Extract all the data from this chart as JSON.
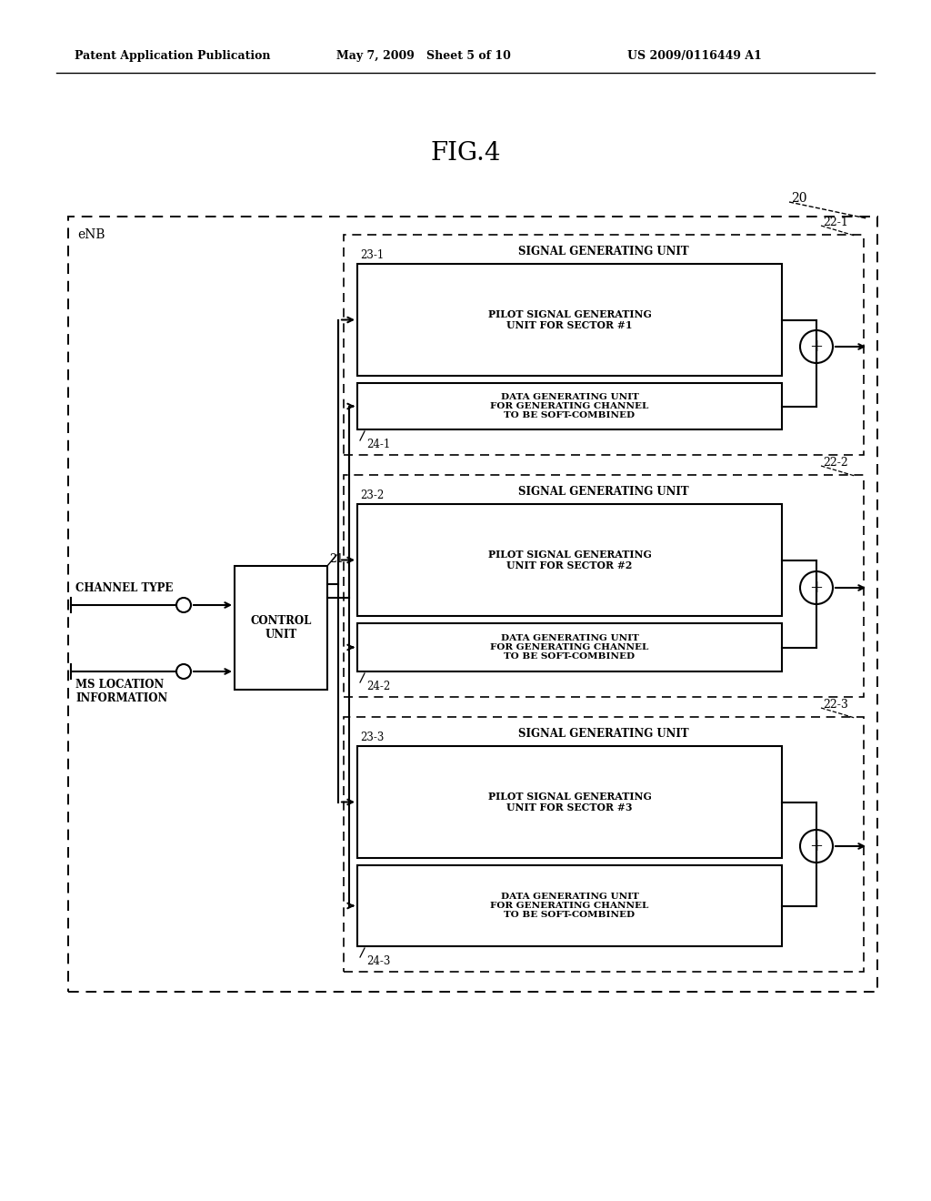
{
  "bg_color": "#ffffff",
  "title": "FIG.4",
  "header_left": "Patent Application Publication",
  "header_mid": "May 7, 2009   Sheet 5 of 10",
  "header_right": "US 2009/0116449 A1",
  "enb_label": "eNB",
  "outer_box_label": "20",
  "control_unit_label": "CONTROL\nUNIT",
  "control_unit_id": "21",
  "channel_type_label": "CHANNEL TYPE",
  "ms_location_label": "MS LOCATION\nINFORMATION",
  "sectors": [
    {
      "unit_id": "22-1",
      "unit_label": "SIGNAL GENERATING UNIT",
      "pilot_id": "23-1",
      "pilot_label": "PILOT SIGNAL GENERATING\nUNIT FOR SECTOR #1",
      "data_id": "24-1",
      "data_label": "DATA GENERATING UNIT\nFOR GENERATING CHANNEL\nTO BE SOFT-COMBINED"
    },
    {
      "unit_id": "22-2",
      "unit_label": "SIGNAL GENERATING UNIT",
      "pilot_id": "23-2",
      "pilot_label": "PILOT SIGNAL GENERATING\nUNIT FOR SECTOR #2",
      "data_id": "24-2",
      "data_label": "DATA GENERATING UNIT\nFOR GENERATING CHANNEL\nTO BE SOFT-COMBINED"
    },
    {
      "unit_id": "22-3",
      "unit_label": "SIGNAL GENERATING UNIT",
      "pilot_id": "23-3",
      "pilot_label": "PILOT SIGNAL GENERATING\nUNIT FOR SECTOR #3",
      "data_id": "24-3",
      "data_label": "DATA GENERATING UNIT\nFOR GENERATING CHANNEL\nTO BE SOFT-COMBINED"
    }
  ]
}
